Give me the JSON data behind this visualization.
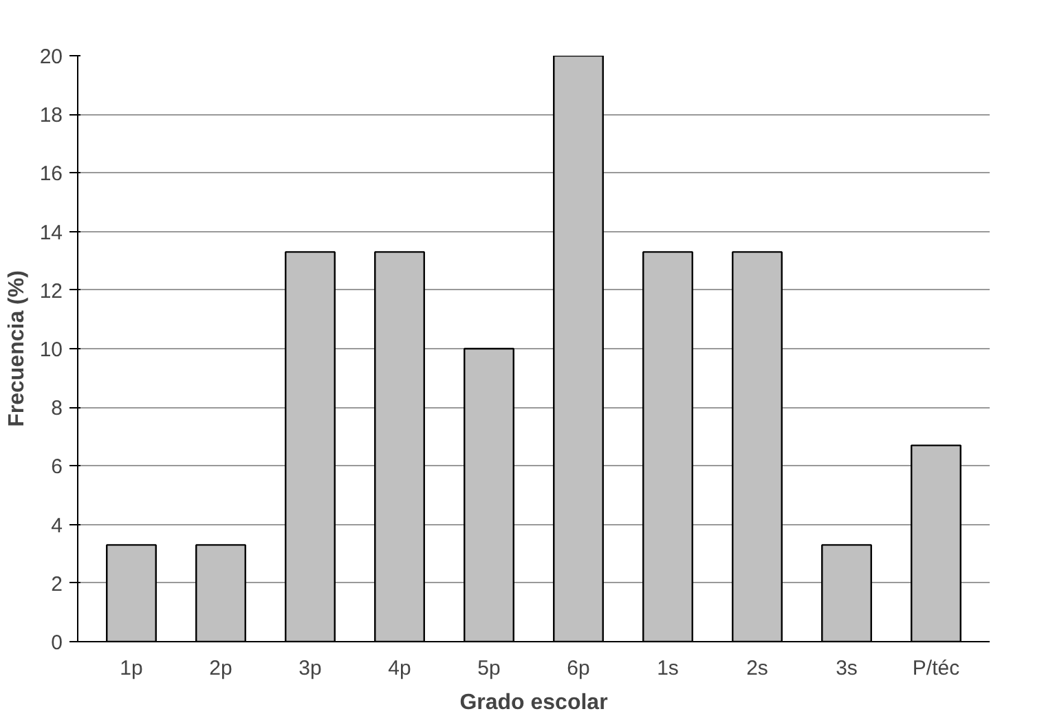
{
  "chart_data": {
    "type": "bar",
    "xlabel": "Grado escolar",
    "ylabel": "Frecuencia (%)",
    "categories": [
      "1p",
      "2p",
      "3p",
      "4p",
      "5p",
      "6p",
      "1s",
      "2s",
      "3s",
      "P/téc"
    ],
    "values": [
      3.3,
      3.3,
      13.3,
      13.3,
      10,
      20,
      13.3,
      13.3,
      3.3,
      6.7
    ],
    "color": "#c0c0c0",
    "ylim": [
      0,
      20
    ],
    "yticks": [
      0,
      2,
      4,
      6,
      8,
      10,
      12,
      14,
      16,
      18,
      20
    ],
    "grid": "y"
  }
}
